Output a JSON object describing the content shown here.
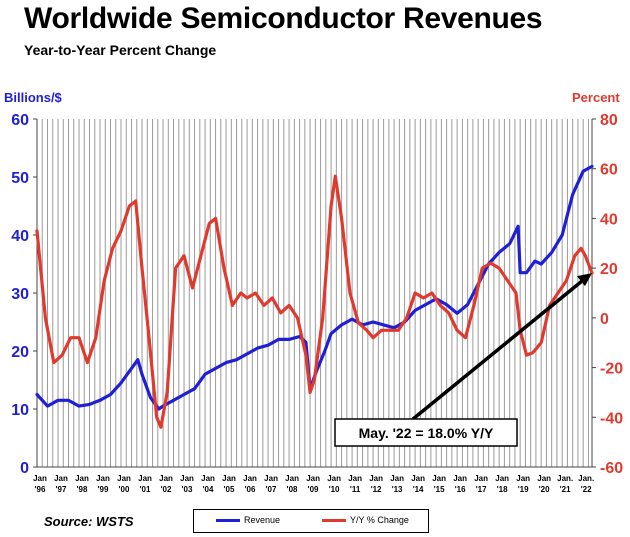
{
  "chart_data": {
    "type": "line",
    "title": "Worldwide Semiconductor Revenues",
    "subtitle": "Year-to-Year Percent Change",
    "ylabel_left": "Billions/$",
    "ylabel_right": "Percent",
    "ylim_left": [
      0,
      60
    ],
    "ylim_right": [
      -60,
      80
    ],
    "yticks_left": [
      "0",
      "10",
      "20",
      "30",
      "40",
      "50",
      "60"
    ],
    "yticks_right": [
      "-60",
      "-40",
      "-20",
      "0",
      "20",
      "40",
      "60",
      "80"
    ],
    "x_month_label": "Jan",
    "x_years": [
      "'96",
      "'97",
      "'98",
      "'99",
      "'00",
      "'01",
      "'02",
      "'03",
      "'04",
      "'05",
      "'06",
      "'07",
      "'08",
      "'09",
      "'10",
      "'11",
      "'12",
      "'13",
      "'14",
      "'15",
      "'16",
      "'17",
      "'18",
      "'19",
      "'20",
      "'21",
      "'22"
    ],
    "x_first_label": "Jan",
    "x_last_label": "Jan.",
    "xlim": [
      1996.0,
      2022.42
    ],
    "grid": "vertical",
    "legend_position": "bottom",
    "series": [
      {
        "name": "Revenue",
        "axis": "left",
        "color": "#1f1fd6",
        "x": [
          1996.0,
          1996.5,
          1997.0,
          1997.5,
          1998.0,
          1998.5,
          1999.0,
          1999.5,
          2000.0,
          2000.5,
          2000.8,
          2001.0,
          2001.4,
          2001.8,
          2002.0,
          2002.5,
          2003.0,
          2003.5,
          2004.0,
          2004.5,
          2005.0,
          2005.5,
          2006.0,
          2006.5,
          2007.0,
          2007.5,
          2008.0,
          2008.5,
          2008.8,
          2009.0,
          2009.3,
          2009.7,
          2010.0,
          2010.5,
          2011.0,
          2011.5,
          2012.0,
          2012.5,
          2013.0,
          2013.5,
          2014.0,
          2014.5,
          2015.0,
          2015.5,
          2016.0,
          2016.5,
          2017.0,
          2017.5,
          2018.0,
          2018.5,
          2018.9,
          2019.0,
          2019.3,
          2019.7,
          2020.0,
          2020.5,
          2021.0,
          2021.5,
          2022.0,
          2022.42
        ],
        "values": [
          12.5,
          10.5,
          11.5,
          11.5,
          10.5,
          10.8,
          11.5,
          12.5,
          14.5,
          17.0,
          18.5,
          16.0,
          12.0,
          10.0,
          10.5,
          11.5,
          12.5,
          13.5,
          16.0,
          17.0,
          18.0,
          18.5,
          19.5,
          20.5,
          21.0,
          22.0,
          22.0,
          22.5,
          21.5,
          13.5,
          16.5,
          20.0,
          23.0,
          24.5,
          25.5,
          24.5,
          25.0,
          24.5,
          24.0,
          25.0,
          27.0,
          28.0,
          29.0,
          28.0,
          26.5,
          28.0,
          31.5,
          35.0,
          37.0,
          38.5,
          41.5,
          33.5,
          33.5,
          35.5,
          35.0,
          37.0,
          40.0,
          47.0,
          51.0,
          51.82
        ]
      },
      {
        "name": "Y/Y % Change",
        "axis": "right",
        "color": "#e03a2f",
        "x": [
          1996.0,
          1996.4,
          1996.8,
          1997.2,
          1997.6,
          1998.0,
          1998.4,
          1998.8,
          1999.2,
          1999.6,
          2000.0,
          2000.4,
          2000.7,
          2001.0,
          2001.3,
          2001.7,
          2001.9,
          2002.2,
          2002.6,
          2003.0,
          2003.4,
          2003.8,
          2004.2,
          2004.5,
          2004.9,
          2005.3,
          2005.7,
          2006.0,
          2006.4,
          2006.8,
          2007.2,
          2007.6,
          2008.0,
          2008.4,
          2008.8,
          2009.0,
          2009.2,
          2009.6,
          2010.0,
          2010.2,
          2010.5,
          2010.9,
          2011.3,
          2011.7,
          2012.0,
          2012.4,
          2012.8,
          2013.2,
          2013.6,
          2014.0,
          2014.4,
          2014.8,
          2015.2,
          2015.6,
          2016.0,
          2016.4,
          2016.8,
          2017.2,
          2017.6,
          2018.0,
          2018.4,
          2018.8,
          2019.0,
          2019.3,
          2019.6,
          2020.0,
          2020.4,
          2020.8,
          2021.2,
          2021.6,
          2021.9,
          2022.1,
          2022.42
        ],
        "values": [
          35.0,
          0.0,
          -18.0,
          -15.0,
          -8.0,
          -8.0,
          -18.0,
          -8.0,
          15.0,
          28.0,
          35.0,
          45.0,
          47.0,
          20.0,
          -5.0,
          -40.0,
          -44.0,
          -30.0,
          20.0,
          25.0,
          12.0,
          25.0,
          38.0,
          40.0,
          20.0,
          5.0,
          10.0,
          8.0,
          10.0,
          5.0,
          8.0,
          2.0,
          5.0,
          0.0,
          -15.0,
          -30.0,
          -25.0,
          0.0,
          45.0,
          57.0,
          40.0,
          10.0,
          -2.0,
          -5.0,
          -8.0,
          -5.0,
          -5.0,
          -5.0,
          0.0,
          10.0,
          8.0,
          10.0,
          5.0,
          2.0,
          -5.0,
          -8.0,
          5.0,
          20.0,
          22.0,
          20.0,
          15.0,
          10.0,
          -5.0,
          -15.0,
          -14.0,
          -10.0,
          5.0,
          10.0,
          15.0,
          25.0,
          28.0,
          25.0,
          18.0
        ]
      }
    ],
    "annotation": {
      "text": "May. '22 = 18.0% Y/Y",
      "points_to_x": 2022.42,
      "points_to_y": 18.0,
      "points_to_axis": "right"
    }
  },
  "source_text": "Source: WSTS",
  "legend": {
    "revenue_label": "Revenue",
    "yoy_label": "Y/Y % Change"
  }
}
